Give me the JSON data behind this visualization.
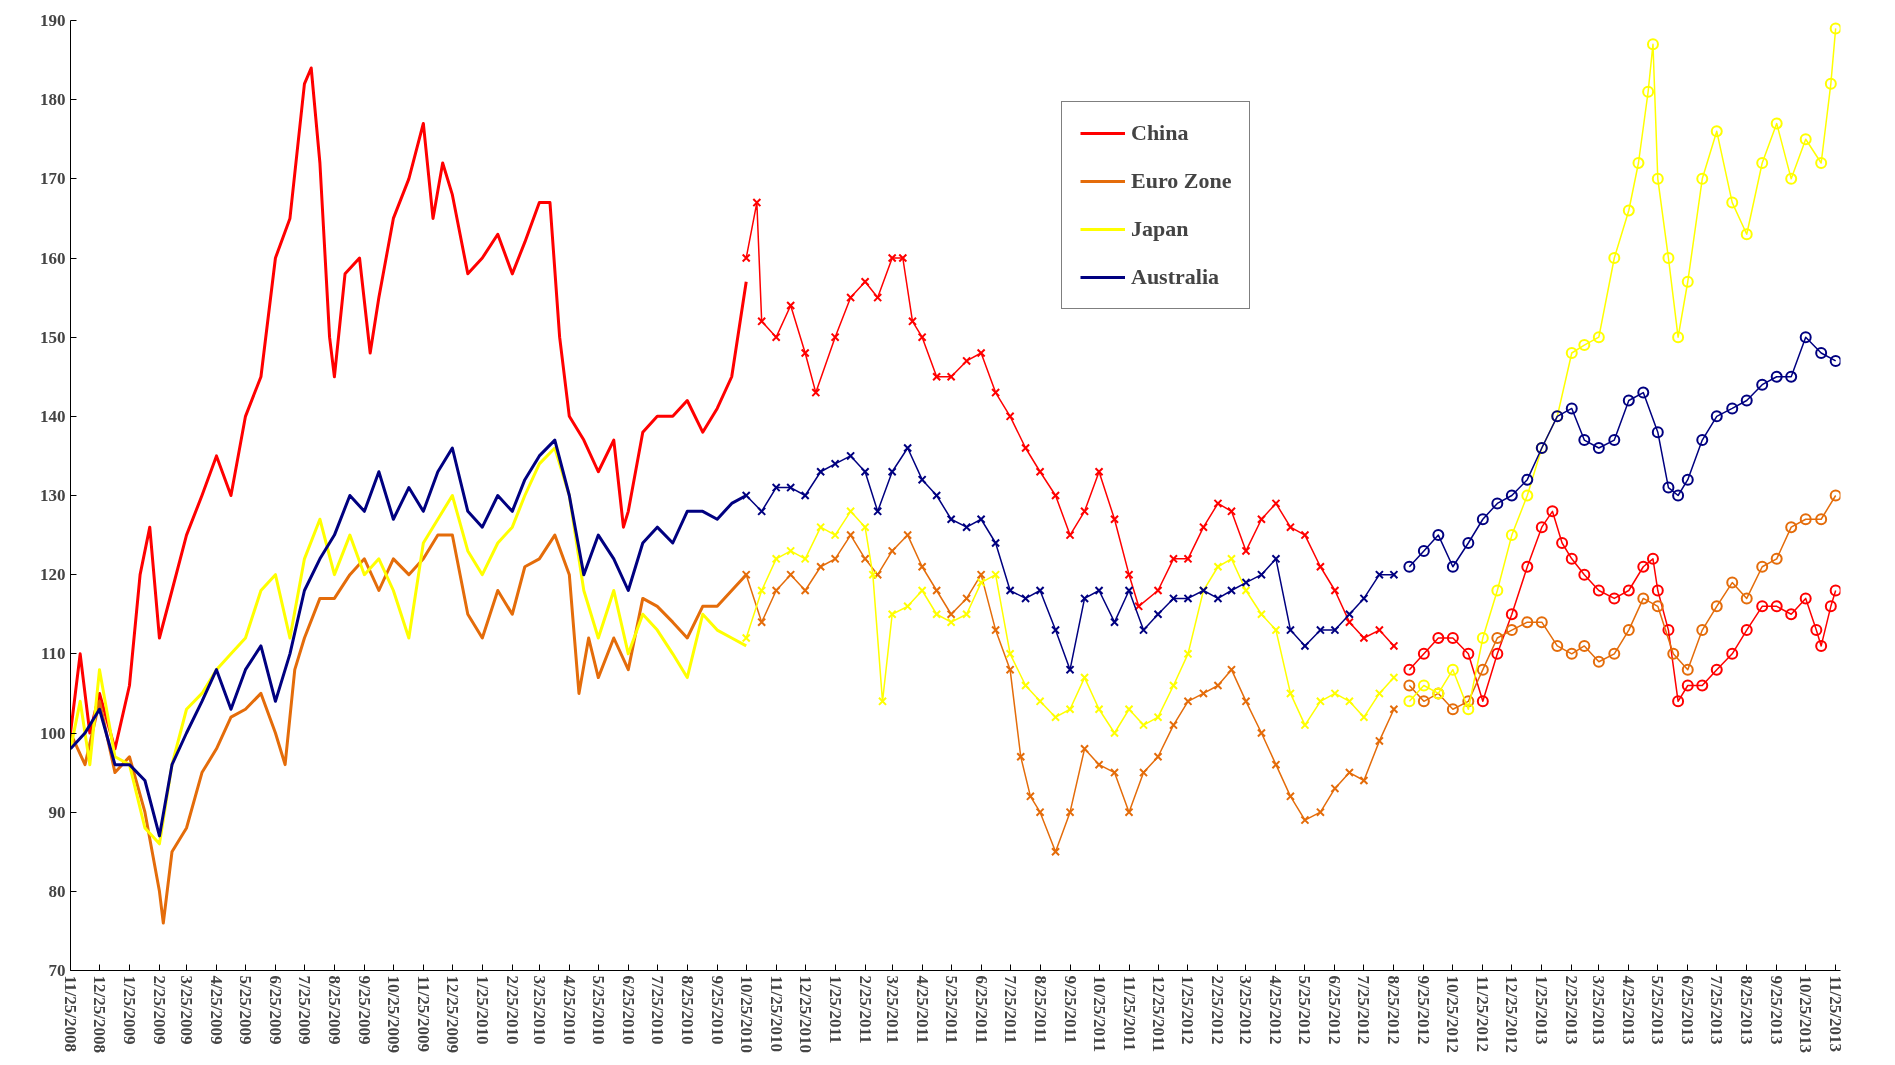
{
  "chart_data": {
    "type": "line",
    "legend": "top right",
    "grid": false,
    "ylim": [
      70,
      190
    ],
    "yticks": [
      70,
      80,
      90,
      100,
      110,
      120,
      130,
      140,
      150,
      160,
      170,
      180,
      190
    ],
    "xlim": [
      "2008-11-25",
      "2013-11-30"
    ],
    "xticks": [
      {
        "value": "2008-11-25",
        "label": "11/25/2008"
      },
      {
        "value": "2008-12-25",
        "label": "12/25/2008"
      },
      {
        "value": "2009-01-25",
        "label": "1/25/2009"
      },
      {
        "value": "2009-02-25",
        "label": "2/25/2009"
      },
      {
        "value": "2009-03-25",
        "label": "3/25/2009"
      },
      {
        "value": "2009-04-25",
        "label": "4/25/2009"
      },
      {
        "value": "2009-05-25",
        "label": "5/25/2009"
      },
      {
        "value": "2009-06-25",
        "label": "6/25/2009"
      },
      {
        "value": "2009-07-25",
        "label": "7/25/2009"
      },
      {
        "value": "2009-08-25",
        "label": "8/25/2009"
      },
      {
        "value": "2009-09-25",
        "label": "9/25/2009"
      },
      {
        "value": "2009-10-25",
        "label": "10/25/2009"
      },
      {
        "value": "2009-11-25",
        "label": "11/25/2009"
      },
      {
        "value": "2009-12-25",
        "label": "12/25/2009"
      },
      {
        "value": "2010-01-25",
        "label": "1/25/2010"
      },
      {
        "value": "2010-02-25",
        "label": "2/25/2010"
      },
      {
        "value": "2010-03-25",
        "label": "3/25/2010"
      },
      {
        "value": "2010-04-25",
        "label": "4/25/2010"
      },
      {
        "value": "2010-05-25",
        "label": "5/25/2010"
      },
      {
        "value": "2010-06-25",
        "label": "6/25/2010"
      },
      {
        "value": "2010-07-25",
        "label": "7/25/2010"
      },
      {
        "value": "2010-08-25",
        "label": "8/25/2010"
      },
      {
        "value": "2010-09-25",
        "label": "9/25/2010"
      },
      {
        "value": "2010-10-25",
        "label": "10/25/2010"
      },
      {
        "value": "2010-11-25",
        "label": "11/25/2010"
      },
      {
        "value": "2010-12-25",
        "label": "12/25/2010"
      },
      {
        "value": "2011-01-25",
        "label": "1/25/2011"
      },
      {
        "value": "2011-02-25",
        "label": "2/25/2011"
      },
      {
        "value": "2011-03-25",
        "label": "3/25/2011"
      },
      {
        "value": "2011-04-25",
        "label": "4/25/2011"
      },
      {
        "value": "2011-05-25",
        "label": "5/25/2011"
      },
      {
        "value": "2011-06-25",
        "label": "6/25/2011"
      },
      {
        "value": "2011-07-25",
        "label": "7/25/2011"
      },
      {
        "value": "2011-08-25",
        "label": "8/25/2011"
      },
      {
        "value": "2011-09-25",
        "label": "9/25/2011"
      },
      {
        "value": "2011-10-25",
        "label": "10/25/2011"
      },
      {
        "value": "2011-11-25",
        "label": "11/25/2011"
      },
      {
        "value": "2011-12-25",
        "label": "12/25/2011"
      },
      {
        "value": "2012-01-25",
        "label": "1/25/2012"
      },
      {
        "value": "2012-02-25",
        "label": "2/25/2012"
      },
      {
        "value": "2012-03-25",
        "label": "3/25/2012"
      },
      {
        "value": "2012-04-25",
        "label": "4/25/2012"
      },
      {
        "value": "2012-05-25",
        "label": "5/25/2012"
      },
      {
        "value": "2012-06-25",
        "label": "6/25/2012"
      },
      {
        "value": "2012-07-25",
        "label": "7/25/2012"
      },
      {
        "value": "2012-08-25",
        "label": "8/25/2012"
      },
      {
        "value": "2012-09-25",
        "label": "9/25/2012"
      },
      {
        "value": "2012-10-25",
        "label": "10/25/2012"
      },
      {
        "value": "2012-11-25",
        "label": "11/25/2012"
      },
      {
        "value": "2012-12-25",
        "label": "12/25/2012"
      },
      {
        "value": "2013-01-25",
        "label": "1/25/2013"
      },
      {
        "value": "2013-02-25",
        "label": "2/25/2013"
      },
      {
        "value": "2013-03-25",
        "label": "3/25/2013"
      },
      {
        "value": "2013-04-25",
        "label": "4/25/2013"
      },
      {
        "value": "2013-05-25",
        "label": "5/25/2013"
      },
      {
        "value": "2013-06-25",
        "label": "6/25/2013"
      },
      {
        "value": "2013-07-25",
        "label": "7/25/2013"
      },
      {
        "value": "2013-08-25",
        "label": "8/25/2013"
      },
      {
        "value": "2013-09-25",
        "label": "9/25/2013"
      },
      {
        "value": "2013-10-25",
        "label": "10/25/2013"
      },
      {
        "value": "2013-11-25",
        "label": "11/25/2013"
      }
    ],
    "series": [
      {
        "name": "China",
        "color": "#ff0000",
        "marker": "none",
        "x": [
          "2008-11-25",
          "2008-12-05",
          "2008-12-15",
          "2008-12-25",
          "2009-01-10",
          "2009-01-25",
          "2009-02-05",
          "2009-02-15",
          "2009-02-25",
          "2009-03-10",
          "2009-03-25",
          "2009-04-10",
          "2009-04-25",
          "2009-05-10",
          "2009-05-25",
          "2009-06-10",
          "2009-06-25",
          "2009-07-10",
          "2009-07-25",
          "2009-08-01",
          "2009-08-10",
          "2009-08-20",
          "2009-08-25",
          "2009-09-05",
          "2009-09-20",
          "2009-10-01",
          "2009-10-10",
          "2009-10-25",
          "2009-11-10",
          "2009-11-25",
          "2009-12-05",
          "2009-12-15",
          "2009-12-25",
          "2010-01-10",
          "2010-01-25",
          "2010-02-10",
          "2010-02-25",
          "2010-03-10",
          "2010-03-25",
          "2010-04-05",
          "2010-04-15",
          "2010-04-25",
          "2010-05-10",
          "2010-05-25",
          "2010-06-10",
          "2010-06-20",
          "2010-06-25",
          "2010-07-10",
          "2010-07-25",
          "2010-08-10",
          "2010-08-25",
          "2010-09-10",
          "2010-09-25",
          "2010-10-10",
          "2010-10-25"
        ],
        "values": [
          100,
          110,
          100,
          105,
          98,
          106,
          120,
          126,
          112,
          118,
          125,
          130,
          135,
          130,
          140,
          145,
          160,
          165,
          182,
          184,
          172,
          150,
          145,
          158,
          160,
          148,
          155,
          165,
          170,
          177,
          165,
          172,
          168,
          158,
          160,
          163,
          158,
          162,
          167,
          167,
          150,
          140,
          137,
          133,
          137,
          126,
          128,
          138,
          140,
          140,
          142,
          138,
          141,
          145,
          157
        ]
      },
      {
        "color": "#ff0000",
        "marker": "cross",
        "x": [
          "2010-10-25",
          "2010-11-05",
          "2010-11-10",
          "2010-11-25",
          "2010-12-10",
          "2010-12-25",
          "2011-01-05",
          "2011-01-25",
          "2011-02-10",
          "2011-02-25",
          "2011-03-10",
          "2011-03-25",
          "2011-04-05",
          "2011-04-15",
          "2011-04-25",
          "2011-05-10",
          "2011-05-25",
          "2011-06-10",
          "2011-06-25",
          "2011-07-10",
          "2011-07-25",
          "2011-08-10",
          "2011-08-25",
          "2011-09-10",
          "2011-09-25",
          "2011-10-10",
          "2011-10-25",
          "2011-11-10",
          "2011-11-25",
          "2011-12-05",
          "2011-12-25",
          "2012-01-10",
          "2012-01-25",
          "2012-02-10",
          "2012-02-25",
          "2012-03-10",
          "2012-03-25",
          "2012-04-10",
          "2012-04-25",
          "2012-05-10",
          "2012-05-25",
          "2012-06-10",
          "2012-06-25",
          "2012-07-10",
          "2012-07-25",
          "2012-08-10",
          "2012-08-25"
        ],
        "values": [
          160,
          167,
          152,
          150,
          154,
          148,
          143,
          150,
          155,
          157,
          155,
          160,
          160,
          152,
          150,
          145,
          145,
          147,
          148,
          143,
          140,
          136,
          133,
          130,
          125,
          128,
          133,
          127,
          120,
          116,
          118,
          122,
          122,
          126,
          129,
          128,
          123,
          127,
          129,
          126,
          125,
          121,
          118,
          114,
          112,
          113,
          111
        ]
      },
      {
        "color": "#ff0000",
        "marker": "circle",
        "x": [
          "2012-09-10",
          "2012-09-25",
          "2012-10-10",
          "2012-10-25",
          "2012-11-10",
          "2012-11-25",
          "2012-12-10",
          "2012-12-25",
          "2013-01-10",
          "2013-01-25",
          "2013-02-05",
          "2013-02-15",
          "2013-02-25",
          "2013-03-10",
          "2013-03-25",
          "2013-04-10",
          "2013-04-25",
          "2013-05-10",
          "2013-05-20",
          "2013-05-25",
          "2013-06-05",
          "2013-06-15",
          "2013-06-25",
          "2013-07-10",
          "2013-07-25",
          "2013-08-10",
          "2013-08-25",
          "2013-09-10",
          "2013-09-25",
          "2013-10-10",
          "2013-10-25",
          "2013-11-05",
          "2013-11-10",
          "2013-11-20",
          "2013-11-25"
        ],
        "values": [
          108,
          110,
          112,
          112,
          110,
          104,
          110,
          115,
          121,
          126,
          128,
          124,
          122,
          120,
          118,
          117,
          118,
          121,
          122,
          118,
          113,
          104,
          106,
          106,
          108,
          110,
          113,
          116,
          116,
          115,
          117,
          113,
          111,
          116,
          118
        ]
      },
      {
        "name": "Euro Zone",
        "color": "#e46c0a",
        "marker": "none",
        "x": [
          "2008-11-25",
          "2008-12-10",
          "2008-12-25",
          "2009-01-10",
          "2009-01-25",
          "2009-02-10",
          "2009-02-25",
          "2009-03-01",
          "2009-03-10",
          "2009-03-25",
          "2009-04-10",
          "2009-04-25",
          "2009-05-10",
          "2009-05-25",
          "2009-06-10",
          "2009-06-25",
          "2009-07-05",
          "2009-07-15",
          "2009-07-25",
          "2009-08-10",
          "2009-08-25",
          "2009-09-10",
          "2009-09-25",
          "2009-10-10",
          "2009-10-25",
          "2009-11-10",
          "2009-11-25",
          "2009-12-10",
          "2009-12-25",
          "2010-01-10",
          "2010-01-25",
          "2010-02-10",
          "2010-02-25",
          "2010-03-10",
          "2010-03-25",
          "2010-04-10",
          "2010-04-25",
          "2010-05-05",
          "2010-05-15",
          "2010-05-25",
          "2010-06-10",
          "2010-06-25",
          "2010-07-10",
          "2010-07-25",
          "2010-08-10",
          "2010-08-25",
          "2010-09-10",
          "2010-09-25",
          "2010-10-10",
          "2010-10-25"
        ],
        "values": [
          100,
          96,
          104,
          95,
          97,
          90,
          80,
          76,
          85,
          88,
          95,
          98,
          102,
          103,
          105,
          100,
          96,
          108,
          112,
          117,
          117,
          120,
          122,
          118,
          122,
          120,
          122,
          125,
          125,
          115,
          112,
          118,
          115,
          121,
          122,
          125,
          120,
          105,
          112,
          107,
          112,
          108,
          117,
          116,
          114,
          112,
          116,
          116,
          118,
          120
        ]
      },
      {
        "color": "#e46c0a",
        "marker": "cross",
        "x": [
          "2010-10-25",
          "2010-11-10",
          "2010-11-25",
          "2010-12-10",
          "2010-12-25",
          "2011-01-10",
          "2011-01-25",
          "2011-02-10",
          "2011-02-25",
          "2011-03-10",
          "2011-03-25",
          "2011-04-10",
          "2011-04-25",
          "2011-05-10",
          "2011-05-25",
          "2011-06-10",
          "2011-06-25",
          "2011-07-10",
          "2011-07-25",
          "2011-08-05",
          "2011-08-15",
          "2011-08-25",
          "2011-09-10",
          "2011-09-25",
          "2011-10-10",
          "2011-10-25",
          "2011-11-10",
          "2011-11-25",
          "2011-12-10",
          "2011-12-25",
          "2012-01-10",
          "2012-01-25",
          "2012-02-10",
          "2012-02-25",
          "2012-03-10",
          "2012-03-25",
          "2012-04-10",
          "2012-04-25",
          "2012-05-10",
          "2012-05-25",
          "2012-06-10",
          "2012-06-25",
          "2012-07-10",
          "2012-07-25",
          "2012-08-10",
          "2012-08-25"
        ],
        "values": [
          120,
          114,
          118,
          120,
          118,
          121,
          122,
          125,
          122,
          120,
          123,
          125,
          121,
          118,
          115,
          117,
          120,
          113,
          108,
          97,
          92,
          90,
          85,
          90,
          98,
          96,
          95,
          90,
          95,
          97,
          101,
          104,
          105,
          106,
          108,
          104,
          100,
          96,
          92,
          89,
          90,
          93,
          95,
          94,
          99,
          103
        ]
      },
      {
        "color": "#e46c0a",
        "marker": "circle",
        "x": [
          "2012-09-10",
          "2012-09-25",
          "2012-10-10",
          "2012-10-25",
          "2012-11-10",
          "2012-11-25",
          "2012-12-10",
          "2012-12-25",
          "2013-01-10",
          "2013-01-25",
          "2013-02-10",
          "2013-02-25",
          "2013-03-10",
          "2013-03-25",
          "2013-04-10",
          "2013-04-25",
          "2013-05-10",
          "2013-05-25",
          "2013-06-10",
          "2013-06-25",
          "2013-07-10",
          "2013-07-25",
          "2013-08-10",
          "2013-08-25",
          "2013-09-10",
          "2013-09-25",
          "2013-10-10",
          "2013-10-25",
          "2013-11-10",
          "2013-11-25"
        ],
        "values": [
          106,
          104,
          105,
          103,
          104,
          108,
          112,
          113,
          114,
          114,
          111,
          110,
          111,
          109,
          110,
          113,
          117,
          116,
          110,
          108,
          113,
          116,
          119,
          117,
          121,
          122,
          126,
          127,
          127,
          130
        ]
      },
      {
        "name": "Japan",
        "color": "#ffff00",
        "marker": "none",
        "x": [
          "2008-11-25",
          "2008-12-05",
          "2008-12-15",
          "2008-12-25",
          "2009-01-10",
          "2009-01-25",
          "2009-02-10",
          "2009-02-25",
          "2009-03-10",
          "2009-03-25",
          "2009-04-10",
          "2009-04-25",
          "2009-05-10",
          "2009-05-25",
          "2009-06-10",
          "2009-06-25",
          "2009-07-10",
          "2009-07-25",
          "2009-08-10",
          "2009-08-25",
          "2009-09-10",
          "2009-09-25",
          "2009-10-10",
          "2009-10-25",
          "2009-11-10",
          "2009-11-20",
          "2009-11-25",
          "2009-12-10",
          "2009-12-25",
          "2010-01-10",
          "2010-01-25",
          "2010-02-10",
          "2010-02-25",
          "2010-03-10",
          "2010-03-25",
          "2010-04-10",
          "2010-04-25",
          "2010-05-10",
          "2010-05-25",
          "2010-06-10",
          "2010-06-25",
          "2010-07-10",
          "2010-07-25",
          "2010-08-10",
          "2010-08-25",
          "2010-09-10",
          "2010-09-25",
          "2010-10-10",
          "2010-10-25"
        ],
        "values": [
          98,
          104,
          96,
          108,
          97,
          96,
          88,
          86,
          96,
          103,
          105,
          108,
          110,
          112,
          118,
          120,
          112,
          122,
          127,
          120,
          125,
          120,
          122,
          118,
          112,
          120,
          124,
          127,
          130,
          123,
          120,
          124,
          126,
          130,
          134,
          136,
          130,
          118,
          112,
          118,
          110,
          115,
          113,
          110,
          107,
          115,
          113,
          112,
          111
        ]
      },
      {
        "color": "#ffff00",
        "marker": "cross",
        "x": [
          "2010-10-25",
          "2010-11-10",
          "2010-11-25",
          "2010-12-10",
          "2010-12-25",
          "2011-01-10",
          "2011-01-25",
          "2011-02-10",
          "2011-02-25",
          "2011-03-05",
          "2011-03-15",
          "2011-03-25",
          "2011-04-10",
          "2011-04-25",
          "2011-05-10",
          "2011-05-25",
          "2011-06-10",
          "2011-06-25",
          "2011-07-10",
          "2011-07-25",
          "2011-08-10",
          "2011-08-25",
          "2011-09-10",
          "2011-09-25",
          "2011-10-10",
          "2011-10-25",
          "2011-11-10",
          "2011-11-25",
          "2011-12-10",
          "2011-12-25",
          "2012-01-10",
          "2012-01-25",
          "2012-02-10",
          "2012-02-25",
          "2012-03-10",
          "2012-03-25",
          "2012-04-10",
          "2012-04-25",
          "2012-05-10",
          "2012-05-25",
          "2012-06-10",
          "2012-06-25",
          "2012-07-10",
          "2012-07-25",
          "2012-08-10",
          "2012-08-25"
        ],
        "values": [
          112,
          118,
          122,
          123,
          122,
          126,
          125,
          128,
          126,
          120,
          104,
          115,
          116,
          118,
          115,
          114,
          115,
          119,
          120,
          110,
          106,
          104,
          102,
          103,
          107,
          103,
          100,
          103,
          101,
          102,
          106,
          110,
          118,
          121,
          122,
          118,
          115,
          113,
          105,
          101,
          104,
          105,
          104,
          102,
          105,
          107
        ]
      },
      {
        "color": "#ffff00",
        "marker": "circle",
        "x": [
          "2012-09-10",
          "2012-09-25",
          "2012-10-10",
          "2012-10-25",
          "2012-11-10",
          "2012-11-25",
          "2012-12-10",
          "2012-12-25",
          "2013-01-10",
          "2013-01-25",
          "2013-02-10",
          "2013-02-25",
          "2013-03-10",
          "2013-03-25",
          "2013-04-10",
          "2013-04-25",
          "2013-05-05",
          "2013-05-15",
          "2013-05-20",
          "2013-05-25",
          "2013-06-05",
          "2013-06-15",
          "2013-06-25",
          "2013-07-10",
          "2013-07-25",
          "2013-08-10",
          "2013-08-25",
          "2013-09-10",
          "2013-09-25",
          "2013-10-10",
          "2013-10-25",
          "2013-11-10",
          "2013-11-20",
          "2013-11-25"
        ],
        "values": [
          104,
          106,
          105,
          108,
          103,
          112,
          118,
          125,
          130,
          136,
          140,
          148,
          149,
          150,
          160,
          166,
          172,
          181,
          187,
          170,
          160,
          150,
          157,
          170,
          176,
          167,
          163,
          172,
          177,
          170,
          175,
          172,
          182,
          189
        ]
      },
      {
        "name": "Australia",
        "color": "#000080",
        "marker": "none",
        "x": [
          "2008-11-25",
          "2008-12-10",
          "2008-12-25",
          "2009-01-10",
          "2009-01-25",
          "2009-02-10",
          "2009-02-25",
          "2009-03-10",
          "2009-03-25",
          "2009-04-10",
          "2009-04-25",
          "2009-05-10",
          "2009-05-25",
          "2009-06-10",
          "2009-06-25",
          "2009-07-10",
          "2009-07-25",
          "2009-08-10",
          "2009-08-25",
          "2009-09-10",
          "2009-09-25",
          "2009-10-10",
          "2009-10-25",
          "2009-11-10",
          "2009-11-25",
          "2009-12-10",
          "2009-12-25",
          "2010-01-10",
          "2010-01-25",
          "2010-02-10",
          "2010-02-25",
          "2010-03-10",
          "2010-03-25",
          "2010-04-10",
          "2010-04-25",
          "2010-05-10",
          "2010-05-25",
          "2010-06-10",
          "2010-06-25",
          "2010-07-10",
          "2010-07-25",
          "2010-08-10",
          "2010-08-25",
          "2010-09-10",
          "2010-09-25",
          "2010-10-10",
          "2010-10-25"
        ],
        "values": [
          98,
          100,
          103,
          96,
          96,
          94,
          87,
          96,
          100,
          104,
          108,
          103,
          108,
          111,
          104,
          110,
          118,
          122,
          125,
          130,
          128,
          133,
          127,
          131,
          128,
          133,
          136,
          128,
          126,
          130,
          128,
          132,
          135,
          137,
          130,
          120,
          125,
          122,
          118,
          124,
          126,
          124,
          128,
          128,
          127,
          129,
          130
        ]
      },
      {
        "color": "#000080",
        "marker": "cross",
        "x": [
          "2010-10-25",
          "2010-11-10",
          "2010-11-25",
          "2010-12-10",
          "2010-12-25",
          "2011-01-10",
          "2011-01-25",
          "2011-02-10",
          "2011-02-25",
          "2011-03-10",
          "2011-03-25",
          "2011-04-10",
          "2011-04-25",
          "2011-05-10",
          "2011-05-25",
          "2011-06-10",
          "2011-06-25",
          "2011-07-10",
          "2011-07-25",
          "2011-08-10",
          "2011-08-25",
          "2011-09-10",
          "2011-09-25",
          "2011-10-10",
          "2011-10-25",
          "2011-11-10",
          "2011-11-25",
          "2011-12-10",
          "2011-12-25",
          "2012-01-10",
          "2012-01-25",
          "2012-02-10",
          "2012-02-25",
          "2012-03-10",
          "2012-03-25",
          "2012-04-10",
          "2012-04-25",
          "2012-05-10",
          "2012-05-25",
          "2012-06-10",
          "2012-06-25",
          "2012-07-10",
          "2012-07-25",
          "2012-08-10",
          "2012-08-25"
        ],
        "values": [
          130,
          128,
          131,
          131,
          130,
          133,
          134,
          135,
          133,
          128,
          133,
          136,
          132,
          130,
          127,
          126,
          127,
          124,
          118,
          117,
          118,
          113,
          108,
          117,
          118,
          114,
          118,
          113,
          115,
          117,
          117,
          118,
          117,
          118,
          119,
          120,
          122,
          113,
          111,
          113,
          113,
          115,
          117,
          120,
          120
        ]
      },
      {
        "color": "#000080",
        "marker": "circle",
        "x": [
          "2012-09-10",
          "2012-09-25",
          "2012-10-10",
          "2012-10-25",
          "2012-11-10",
          "2012-11-25",
          "2012-12-10",
          "2012-12-25",
          "2013-01-10",
          "2013-01-25",
          "2013-02-10",
          "2013-02-25",
          "2013-03-10",
          "2013-03-25",
          "2013-04-10",
          "2013-04-25",
          "2013-05-10",
          "2013-05-25",
          "2013-06-05",
          "2013-06-15",
          "2013-06-25",
          "2013-07-10",
          "2013-07-25",
          "2013-08-10",
          "2013-08-25",
          "2013-09-10",
          "2013-09-25",
          "2013-10-10",
          "2013-10-25",
          "2013-11-10",
          "2013-11-25"
        ],
        "values": [
          121,
          123,
          125,
          121,
          124,
          127,
          129,
          130,
          132,
          136,
          140,
          141,
          137,
          136,
          137,
          142,
          143,
          138,
          131,
          130,
          132,
          137,
          140,
          141,
          142,
          144,
          145,
          145,
          150,
          148,
          147
        ]
      }
    ]
  }
}
